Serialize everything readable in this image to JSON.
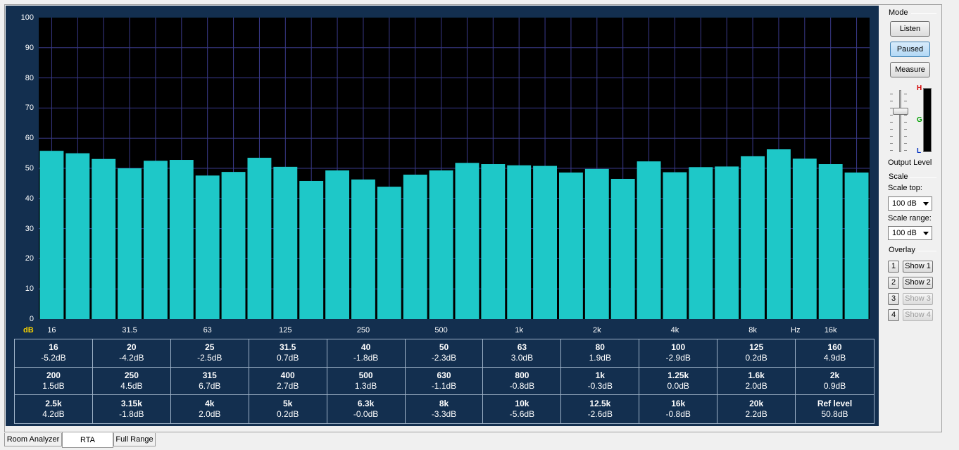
{
  "spectrum": {
    "y_unit_label": "dB",
    "x_unit_label": "Hz",
    "y_ticks": [
      "100",
      "90",
      "80",
      "70",
      "60",
      "50",
      "40",
      "30",
      "20",
      "10",
      "0"
    ],
    "x_ticks": [
      "16",
      "31.5",
      "63",
      "125",
      "250",
      "500",
      "1k",
      "2k",
      "4k",
      "8k",
      "16k"
    ]
  },
  "chart_data": {
    "type": "bar",
    "ylim": [
      0,
      100
    ],
    "grid": true,
    "ylabel": "dB",
    "xlabel": "Hz",
    "categories": [
      "16",
      "20",
      "25",
      "31.5",
      "40",
      "50",
      "63",
      "80",
      "100",
      "125",
      "160",
      "200",
      "250",
      "315",
      "400",
      "500",
      "630",
      "800",
      "1k",
      "1.25k",
      "1.6k",
      "2k",
      "2.5k",
      "3.15k",
      "4k",
      "5k",
      "6.3k",
      "8k",
      "10k",
      "12.5k",
      "16k",
      "20k"
    ],
    "values": [
      55.8,
      55.0,
      53.1,
      50.0,
      52.5,
      52.8,
      47.6,
      48.8,
      53.5,
      50.5,
      45.8,
      49.3,
      46.3,
      43.9,
      47.9,
      49.3,
      51.8,
      51.4,
      51.0,
      50.8,
      48.6,
      49.8,
      46.5,
      52.3,
      48.7,
      50.4,
      50.6,
      54.0,
      56.3,
      53.2,
      51.4,
      48.6
    ]
  },
  "readout": [
    {
      "freq": "16",
      "val": "-5.2dB"
    },
    {
      "freq": "20",
      "val": "-4.2dB"
    },
    {
      "freq": "25",
      "val": "-2.5dB"
    },
    {
      "freq": "31.5",
      "val": "0.7dB"
    },
    {
      "freq": "40",
      "val": "-1.8dB"
    },
    {
      "freq": "50",
      "val": "-2.3dB"
    },
    {
      "freq": "63",
      "val": "3.0dB"
    },
    {
      "freq": "80",
      "val": "1.9dB"
    },
    {
      "freq": "100",
      "val": "-2.9dB"
    },
    {
      "freq": "125",
      "val": "0.2dB"
    },
    {
      "freq": "160",
      "val": "4.9dB"
    },
    {
      "freq": "200",
      "val": "1.5dB"
    },
    {
      "freq": "250",
      "val": "4.5dB"
    },
    {
      "freq": "315",
      "val": "6.7dB"
    },
    {
      "freq": "400",
      "val": "2.7dB"
    },
    {
      "freq": "500",
      "val": "1.3dB"
    },
    {
      "freq": "630",
      "val": "-1.1dB"
    },
    {
      "freq": "800",
      "val": "-0.8dB"
    },
    {
      "freq": "1k",
      "val": "-0.3dB"
    },
    {
      "freq": "1.25k",
      "val": "0.0dB"
    },
    {
      "freq": "1.6k",
      "val": "2.0dB"
    },
    {
      "freq": "2k",
      "val": "0.9dB"
    },
    {
      "freq": "2.5k",
      "val": "4.2dB"
    },
    {
      "freq": "3.15k",
      "val": "-1.8dB"
    },
    {
      "freq": "4k",
      "val": "2.0dB"
    },
    {
      "freq": "5k",
      "val": "0.2dB"
    },
    {
      "freq": "6.3k",
      "val": "-0.0dB"
    },
    {
      "freq": "8k",
      "val": "-3.3dB"
    },
    {
      "freq": "10k",
      "val": "-5.6dB"
    },
    {
      "freq": "12.5k",
      "val": "-2.6dB"
    },
    {
      "freq": "16k",
      "val": "-0.8dB"
    },
    {
      "freq": "20k",
      "val": "2.2dB"
    },
    {
      "freq": "Ref level",
      "val": "50.8dB"
    }
  ],
  "sidebar": {
    "mode_title": "Mode",
    "listen_label": "Listen",
    "paused_label": "Paused",
    "measure_label": "Measure",
    "meter_h": "H",
    "meter_g": "G",
    "meter_l": "L",
    "output_level_label": "Output Level",
    "scale_title": "Scale",
    "scale_top_label": "Scale top:",
    "scale_top_value": "100 dB",
    "scale_range_label": "Scale range:",
    "scale_range_value": "100 dB",
    "overlay_title": "Overlay",
    "overlay": [
      {
        "num": "1",
        "show": "Show 1",
        "enabled": true
      },
      {
        "num": "2",
        "show": "Show 2",
        "enabled": true
      },
      {
        "num": "3",
        "show": "Show 3",
        "enabled": false
      },
      {
        "num": "4",
        "show": "Show 4",
        "enabled": false
      }
    ]
  },
  "tabs": [
    {
      "label": "Room Analyzer",
      "selected": false
    },
    {
      "label": "RTA",
      "selected": true
    },
    {
      "label": "Full Range",
      "selected": false
    }
  ],
  "colors": {
    "bar": "#1ec8c8",
    "plot_bg": "#000000",
    "panel_bg": "#132f4f",
    "gridline": "#3a3a8a",
    "meter_h": "#d40000",
    "meter_g": "#00a000",
    "meter_l": "#0030c0"
  }
}
